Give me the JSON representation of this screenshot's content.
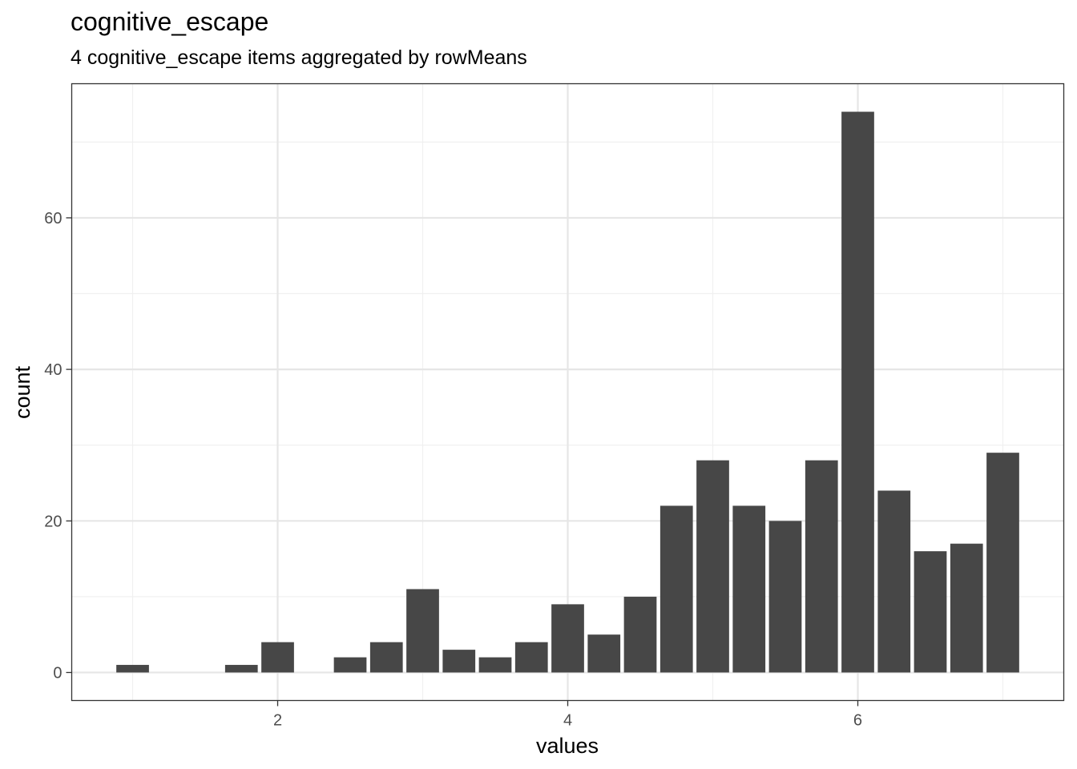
{
  "chart_data": {
    "type": "bar",
    "title": "cognitive_escape",
    "subtitle": "4 cognitive_escape items aggregated by rowMeans",
    "xlabel": "values",
    "ylabel": "count",
    "x": [
      1,
      1.25,
      1.75,
      2,
      2.5,
      2.75,
      3,
      3.25,
      3.5,
      3.75,
      4,
      4.25,
      4.5,
      4.75,
      5,
      5.25,
      5.5,
      5.75,
      6,
      6.25,
      6.5,
      6.75,
      7
    ],
    "values": [
      1,
      0,
      1,
      4,
      2,
      4,
      11,
      3,
      2,
      4,
      9,
      5,
      10,
      22,
      28,
      22,
      20,
      28,
      74,
      24,
      16,
      17,
      29
    ],
    "xlim": [
      0.58,
      7.42
    ],
    "ylim": [
      -3.7,
      77.7
    ],
    "xticks": [
      2,
      4,
      6
    ],
    "yticks": [
      0,
      20,
      40,
      60
    ],
    "grid": true,
    "bar_color": "#474747"
  }
}
